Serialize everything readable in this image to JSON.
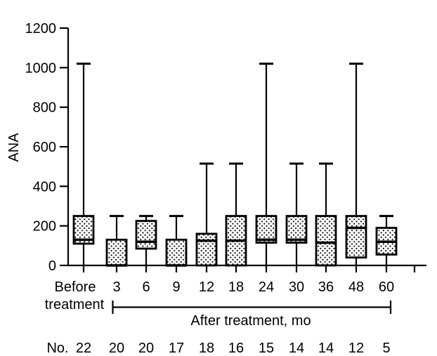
{
  "figure": {
    "ylabel": "ANA",
    "before_label_line1": "Before",
    "before_label_line2": "treatment",
    "after_group_label": "After treatment, mo",
    "n_row_label": "No."
  },
  "colors": {
    "ink": "#000000",
    "background": "#ffffff"
  },
  "chart_data": {
    "type": "boxplot",
    "title": "",
    "ylabel": "ANA",
    "xlabel": "After treatment, mo",
    "ylim": [
      0,
      1200
    ],
    "y_ticks": [
      0,
      200,
      400,
      600,
      800,
      1000,
      1200
    ],
    "grid": false,
    "legend": false,
    "categories": [
      "Before treatment",
      "3",
      "6",
      "9",
      "12",
      "18",
      "24",
      "30",
      "36",
      "48",
      "60"
    ],
    "n_label": "No.",
    "n_values": [
      22,
      20,
      20,
      17,
      18,
      16,
      15,
      14,
      14,
      12,
      5
    ],
    "boxes": [
      {
        "label": "Before treatment",
        "n": 22,
        "low": 0,
        "q1": 110,
        "median": 130,
        "q3": 250,
        "high": 1020
      },
      {
        "label": "3",
        "n": 20,
        "low": 0,
        "q1": 0,
        "median": 0,
        "q3": 130,
        "high": 250
      },
      {
        "label": "6",
        "n": 20,
        "low": 0,
        "q1": 85,
        "median": 120,
        "q3": 225,
        "high": 250
      },
      {
        "label": "9",
        "n": 17,
        "low": 0,
        "q1": 0,
        "median": 0,
        "q3": 130,
        "high": 250
      },
      {
        "label": "12",
        "n": 18,
        "low": 0,
        "q1": 0,
        "median": 125,
        "q3": 160,
        "high": 515
      },
      {
        "label": "18",
        "n": 16,
        "low": 0,
        "q1": 0,
        "median": 125,
        "q3": 250,
        "high": 515
      },
      {
        "label": "24",
        "n": 15,
        "low": 0,
        "q1": 115,
        "median": 130,
        "q3": 250,
        "high": 1020
      },
      {
        "label": "30",
        "n": 14,
        "low": 0,
        "q1": 115,
        "median": 130,
        "q3": 250,
        "high": 515
      },
      {
        "label": "36",
        "n": 14,
        "low": 0,
        "q1": 0,
        "median": 115,
        "q3": 250,
        "high": 515
      },
      {
        "label": "48",
        "n": 12,
        "low": 0,
        "q1": 40,
        "median": 190,
        "q3": 250,
        "high": 1020
      },
      {
        "label": "60",
        "n": 5,
        "low": 0,
        "q1": 55,
        "median": 120,
        "q3": 190,
        "high": 250
      }
    ]
  }
}
